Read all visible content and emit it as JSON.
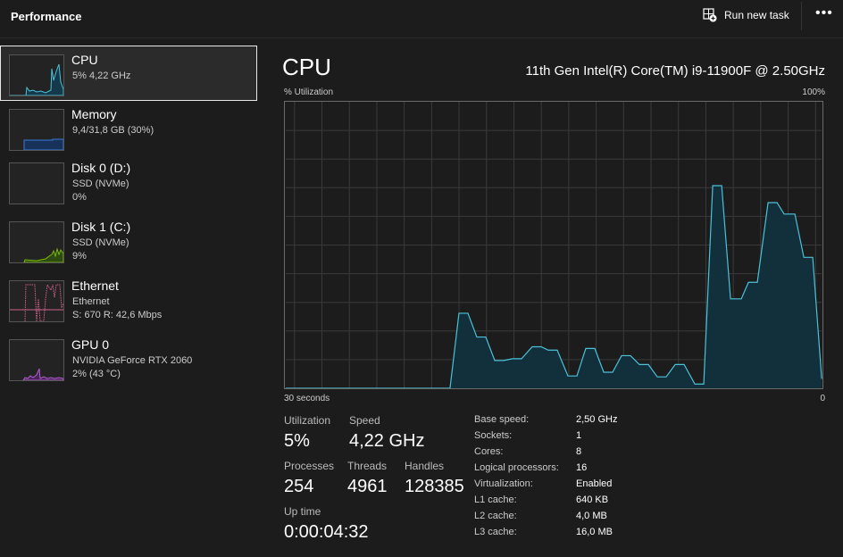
{
  "header": {
    "title": "Performance",
    "run_new_task": "Run new task",
    "more": "•••"
  },
  "sidebar": {
    "items": [
      {
        "name": "CPU",
        "sub1": "5% 4,22 GHz",
        "selected": true,
        "color": "#4cc2d9"
      },
      {
        "name": "Memory",
        "sub1": "9,4/31,8 GB (30%)",
        "color": "#3a7bd5"
      },
      {
        "name": "Disk 0 (D:)",
        "sub1": "SSD (NVMe)",
        "sub2": "0%",
        "color": "#7cbb00"
      },
      {
        "name": "Disk 1 (C:)",
        "sub1": "SSD (NVMe)",
        "sub2": "9%",
        "color": "#7cbb00"
      },
      {
        "name": "Ethernet",
        "sub1": "Ethernet",
        "sub2": "S: 670 R: 42,6 Mbps",
        "color": "#d0608a"
      },
      {
        "name": "GPU 0",
        "sub1": "NVIDIA GeForce RTX 2060",
        "sub2": "2% (43 °C)",
        "color": "#b05fd0"
      }
    ]
  },
  "main": {
    "title": "CPU",
    "model": "11th Gen Intel(R) Core(TM) i9-11900F @ 2.50GHz",
    "y_label": "% Utilization",
    "y_max_label": "100%",
    "x_left_label": "30 seconds",
    "x_right_label": "0",
    "stats": {
      "utilization_label": "Utilization",
      "utilization": "5%",
      "speed_label": "Speed",
      "speed": "4,22 GHz",
      "processes_label": "Processes",
      "processes": "254",
      "threads_label": "Threads",
      "threads": "4961",
      "handles_label": "Handles",
      "handles": "128385",
      "uptime_label": "Up time",
      "uptime": "0:00:04:32"
    },
    "specs": [
      {
        "k": "Base speed:",
        "v": "2,50 GHz"
      },
      {
        "k": "Sockets:",
        "v": "1"
      },
      {
        "k": "Cores:",
        "v": "8"
      },
      {
        "k": "Logical processors:",
        "v": "16"
      },
      {
        "k": "Virtualization:",
        "v": "Enabled"
      },
      {
        "k": "L1 cache:",
        "v": "640 KB"
      },
      {
        "k": "L2 cache:",
        "v": "4,0 MB"
      },
      {
        "k": "L3 cache:",
        "v": "16,0 MB"
      }
    ]
  },
  "chart_data": {
    "type": "area",
    "xlabel": "30 seconds",
    "ylabel": "% Utilization",
    "xlim": [
      30,
      0
    ],
    "ylim": [
      0,
      100
    ],
    "grid": true,
    "color": "#4cc2d9",
    "x": [
      30,
      20.8,
      20.3,
      19.8,
      19.3,
      18.8,
      18.3,
      17.8,
      17.3,
      16.8,
      16.2,
      15.7,
      15.3,
      14.8,
      14.2,
      13.7,
      13.2,
      12.7,
      12.2,
      11.7,
      11.2,
      10.7,
      10.2,
      9.7,
      9.2,
      8.7,
      8.2,
      7.7,
      7.1,
      6.6,
      6.1,
      5.6,
      5.1,
      4.5,
      4.1,
      3.6,
      3.0,
      2.5,
      2.1,
      1.5,
      1.0,
      0.5,
      0
    ],
    "y": [
      0,
      0,
      26.2,
      26.2,
      17.9,
      17.9,
      9.7,
      9.7,
      10.3,
      10.3,
      14.5,
      14.5,
      13.3,
      13.3,
      4.3,
      4.3,
      13.9,
      13.9,
      5.6,
      5.6,
      11.4,
      11.4,
      8.3,
      8.3,
      4.0,
      4.0,
      8.3,
      8.3,
      1.5,
      1.5,
      70.7,
      70.7,
      31.2,
      31.2,
      37.0,
      37.0,
      64.8,
      64.8,
      60.8,
      60.8,
      45.7,
      45.7,
      3.3
    ]
  }
}
